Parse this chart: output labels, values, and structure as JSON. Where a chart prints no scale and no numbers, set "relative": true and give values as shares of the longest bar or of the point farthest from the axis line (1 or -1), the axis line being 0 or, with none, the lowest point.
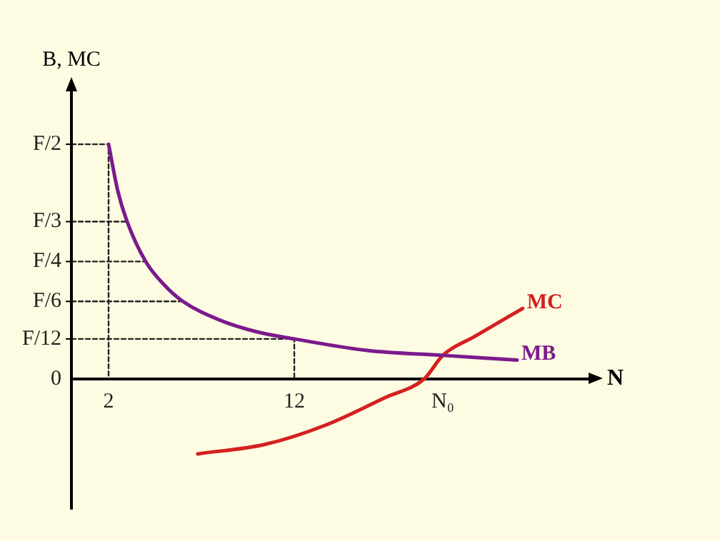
{
  "chart_data": {
    "type": "line",
    "relative": true,
    "ylabel": "B, MC",
    "xlabel": "N",
    "xlim": [
      0,
      28
    ],
    "xticks": [
      2,
      12,
      {
        "value": 20,
        "label": "N₀"
      }
    ],
    "annotations": [
      "0"
    ],
    "grid": false,
    "legend": false,
    "marker": "none",
    "series": [
      {
        "name": "MB",
        "color": "#7b1a8c",
        "x": [
          2,
          2.5,
          3,
          4,
          5,
          6,
          8,
          10,
          12,
          16,
          20,
          24
        ],
        "values": [
          1,
          0.8,
          0.67,
          0.5,
          0.4,
          0.33,
          0.25,
          0.2,
          0.17,
          0.12,
          0.1,
          0.08
        ]
      },
      {
        "name": "MC",
        "color": "#d42020",
        "x": [
          6.8,
          10.4,
          13.6,
          16.9,
          19.0,
          20,
          21.7,
          24.3
        ],
        "values": [
          -0.32,
          -0.28,
          -0.2,
          -0.08,
          0,
          0.1,
          0.18,
          0.3
        ]
      },
      {
        "name": "F/2",
        "color": "#222222",
        "line_style": "dashed",
        "x": [
          0,
          2,
          2
        ],
        "values": [
          1,
          1,
          0
        ]
      },
      {
        "name": "F/3",
        "color": "#222222",
        "line_style": "dashed",
        "x": [
          0,
          3
        ],
        "values": [
          0.67,
          0.67
        ]
      },
      {
        "name": "F/4",
        "color": "#222222",
        "line_style": "dashed",
        "x": [
          0,
          4
        ],
        "values": [
          0.5,
          0.5
        ]
      },
      {
        "name": "F/6",
        "color": "#222222",
        "line_style": "dashed",
        "x": [
          0,
          6
        ],
        "values": [
          0.33,
          0.33
        ]
      },
      {
        "name": "F/12",
        "color": "#222222",
        "line_style": "dashed",
        "x": [
          0,
          12,
          12
        ],
        "values": [
          0.17,
          0.17,
          0
        ]
      }
    ]
  }
}
